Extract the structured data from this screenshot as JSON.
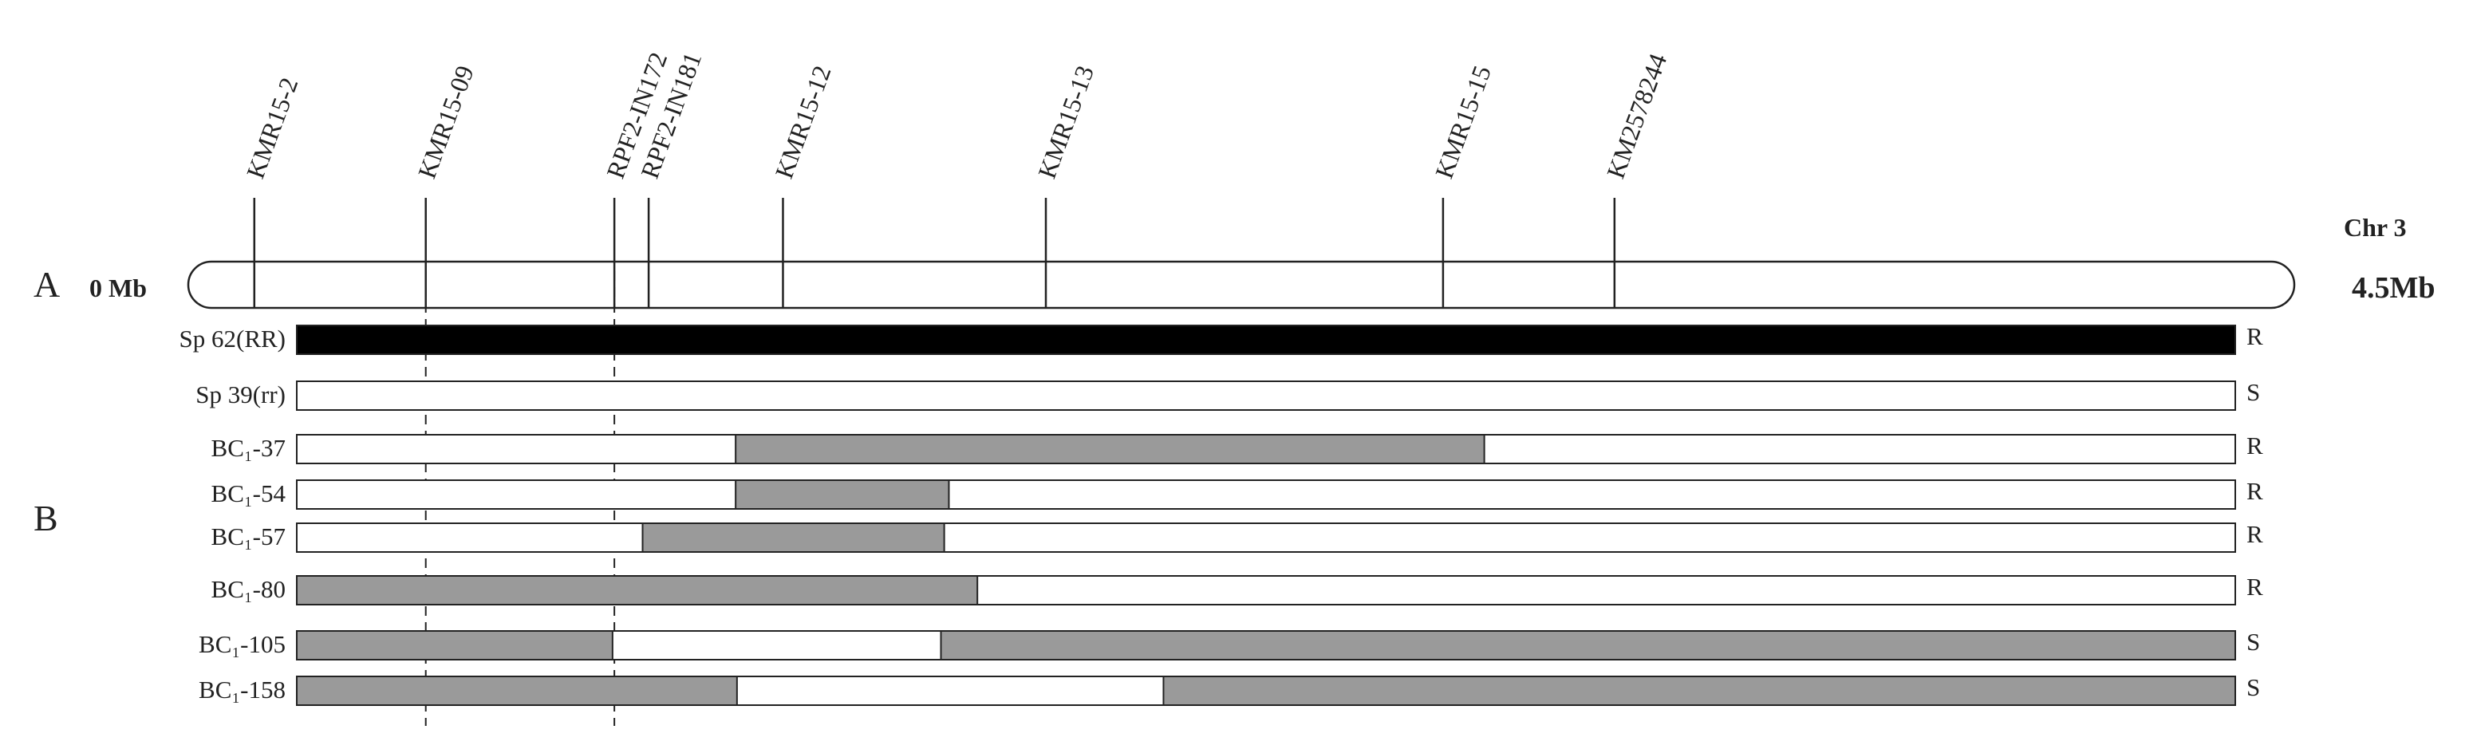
{
  "panel_a": {
    "letter": "A",
    "chromosome": "Chr 3",
    "start_label": "0 Mb",
    "end_label": "4.5Mb"
  },
  "panel_b": {
    "letter": "B"
  },
  "markers": [
    {
      "label": "KMR15-2",
      "position": 0.89
    },
    {
      "label": "KMR15-09",
      "position": 1.49
    },
    {
      "label": "RPF2-IN172",
      "position": 2.15
    },
    {
      "label": "RPF2-IN181",
      "position": 2.27
    },
    {
      "label": "KMR15-12",
      "position": 2.74
    },
    {
      "label": "KMR15-13",
      "position": 3.66
    },
    {
      "label": "KMR15-15",
      "position": 5.05
    },
    {
      "label": "KM2578244",
      "position": 5.65
    }
  ],
  "individuals": [
    {
      "name": "Sp 62(RR)",
      "phenotype": "R",
      "style": "black",
      "segments": [
        [
          0.0,
          1.0
        ]
      ]
    },
    {
      "name": "Sp 39(rr)",
      "phenotype": "S",
      "style": "gray",
      "segments": []
    },
    {
      "name": "BC₁-37",
      "phenotype": "R",
      "style": "gray",
      "segments": [
        [
          0.2264,
          0.6126
        ]
      ]
    },
    {
      "name": "BC₁-54",
      "phenotype": "R",
      "style": "gray",
      "segments": [
        [
          0.2264,
          0.3364
        ]
      ]
    },
    {
      "name": "BC₁-57",
      "phenotype": "R",
      "style": "gray",
      "segments": [
        [
          0.1784,
          0.334
        ]
      ]
    },
    {
      "name": "BC₁-80",
      "phenotype": "R",
      "style": "gray",
      "segments": [
        [
          0.0,
          0.3511
        ]
      ]
    },
    {
      "name": "BC₁-105",
      "phenotype": "S",
      "style": "gray",
      "segments": [
        [
          0.0,
          0.1629
        ],
        [
          0.3323,
          1.0
        ]
      ]
    },
    {
      "name": "BC₁-158",
      "phenotype": "S",
      "style": "gray",
      "segments": [
        [
          0.0,
          0.2271
        ],
        [
          0.4471,
          1.0
        ]
      ]
    }
  ]
}
